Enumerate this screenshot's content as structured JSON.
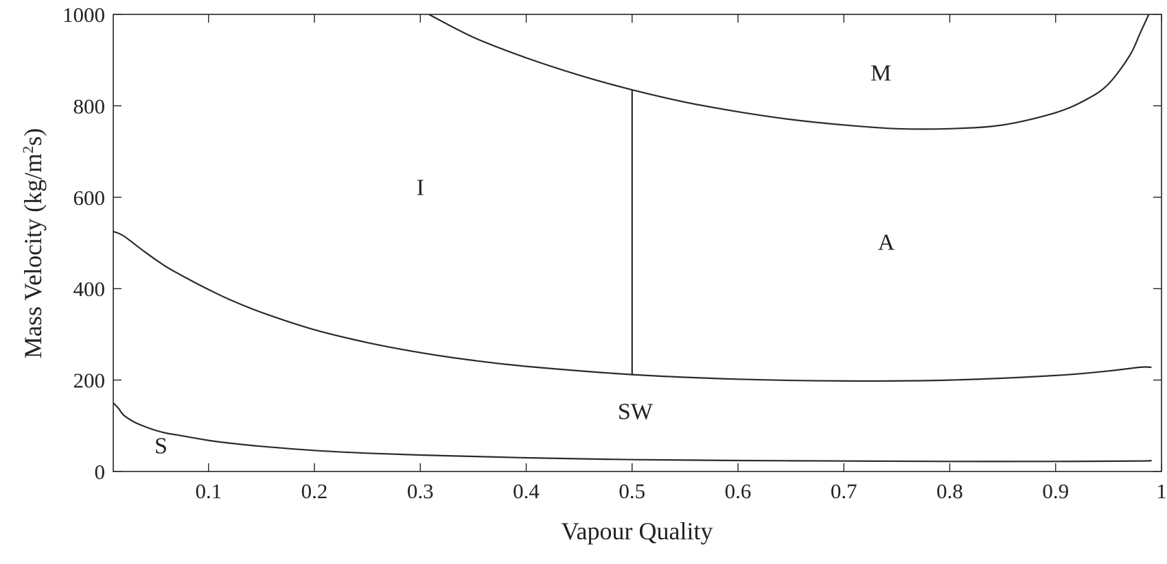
{
  "chart_data": {
    "type": "line",
    "title": "",
    "xlabel": "Vapour Quality",
    "ylabel_main": "Mass Velocity (kg/m",
    "ylabel_sup": "2",
    "ylabel_end": "s)",
    "xlim": [
      0.01,
      1.0
    ],
    "ylim": [
      0,
      1000
    ],
    "grid": false,
    "legend": "none",
    "xticks": [
      0.1,
      0.2,
      0.3,
      0.4,
      0.5,
      0.6,
      0.7,
      0.8,
      0.9,
      1.0
    ],
    "xtick_labels": [
      "0.1",
      "0.2",
      "0.3",
      "0.4",
      "0.5",
      "0.6",
      "0.7",
      "0.8",
      "0.9",
      "1"
    ],
    "yticks": [
      0,
      200,
      400,
      600,
      800,
      1000
    ],
    "ytick_labels": [
      "0",
      "200",
      "400",
      "600",
      "800",
      "1000"
    ],
    "series": [
      {
        "x": [
          0.01,
          0.015,
          0.02,
          0.03,
          0.04,
          0.05,
          0.06,
          0.07,
          0.08,
          0.1,
          0.12,
          0.15,
          0.2,
          0.25,
          0.3,
          0.35,
          0.4,
          0.5,
          0.6,
          0.7,
          0.8,
          0.9,
          0.98,
          0.99
        ],
        "y": [
          150,
          138,
          123,
          108,
          98,
          90,
          84,
          80,
          76,
          68,
          62,
          55,
          46,
          40,
          36,
          33,
          30,
          26,
          24,
          23,
          22,
          22,
          23,
          24
        ]
      },
      {
        "x": [
          0.01,
          0.02,
          0.04,
          0.06,
          0.08,
          0.1,
          0.12,
          0.15,
          0.2,
          0.25,
          0.3,
          0.35,
          0.4,
          0.5,
          0.6,
          0.7,
          0.8,
          0.9,
          0.95,
          0.98,
          0.99
        ],
        "y": [
          525,
          515,
          480,
          448,
          422,
          398,
          376,
          348,
          310,
          282,
          260,
          243,
          230,
          212,
          202,
          198,
          200,
          210,
          220,
          228,
          228
        ]
      },
      {
        "x": [
          0.3,
          0.35,
          0.4,
          0.45,
          0.5,
          0.55,
          0.6,
          0.65,
          0.7,
          0.75,
          0.8,
          0.85,
          0.9,
          0.93,
          0.95,
          0.97,
          0.98,
          0.99
        ],
        "y": [
          1010,
          950,
          905,
          867,
          835,
          808,
          787,
          770,
          758,
          750,
          750,
          758,
          785,
          815,
          848,
          910,
          960,
          1010
        ]
      },
      {
        "x": [
          0.5,
          0.5
        ],
        "y": [
          212,
          835
        ]
      }
    ],
    "annotations": [
      {
        "text": "M",
        "x": 0.735,
        "y": 855
      },
      {
        "text": "I",
        "x": 0.3,
        "y": 605
      },
      {
        "text": "A",
        "x": 0.74,
        "y": 485
      },
      {
        "text": "SW",
        "x": 0.503,
        "y": 115
      },
      {
        "text": "S",
        "x": 0.055,
        "y": 40
      }
    ]
  }
}
